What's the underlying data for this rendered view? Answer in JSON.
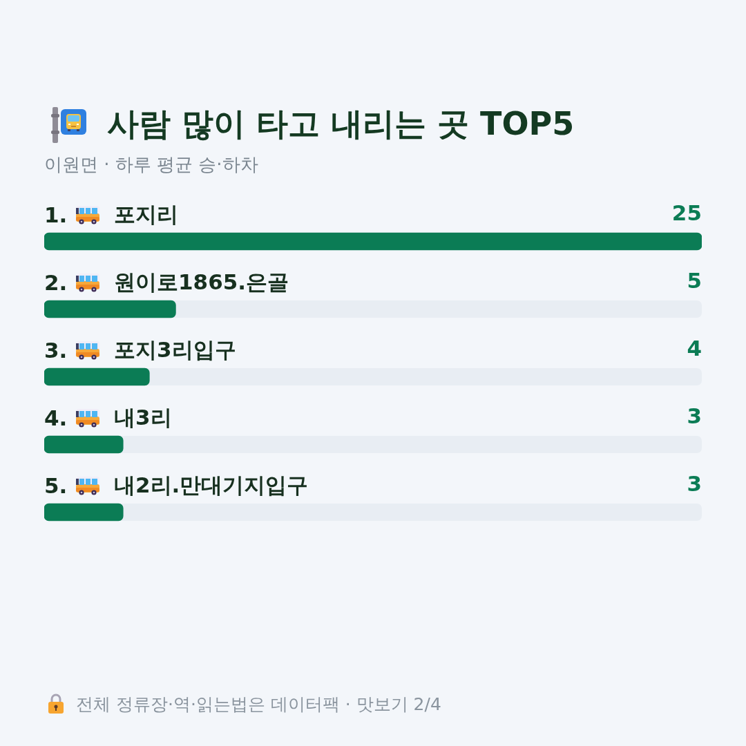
{
  "chart_data": {
    "type": "bar",
    "orientation": "horizontal",
    "title": "사람 많이 타고 내리는 곳 TOP5",
    "subtitle": "이원면 · 하루 평균 승·하차",
    "categories": [
      "1. 포지리",
      "2. 원이로1865.은골",
      "3. 포지3리입구",
      "4. 내3리",
      "5. 내2리.만대기지입구"
    ],
    "values": [
      25,
      5,
      4,
      3,
      3
    ],
    "color": "#0b7c55",
    "xlim": [
      0,
      25
    ],
    "data_labels": true,
    "tick_labels": "y",
    "annotations": [
      "전체 정류장·역·읽는법은 데이터팩 · 맛보기 2/4"
    ]
  }
}
